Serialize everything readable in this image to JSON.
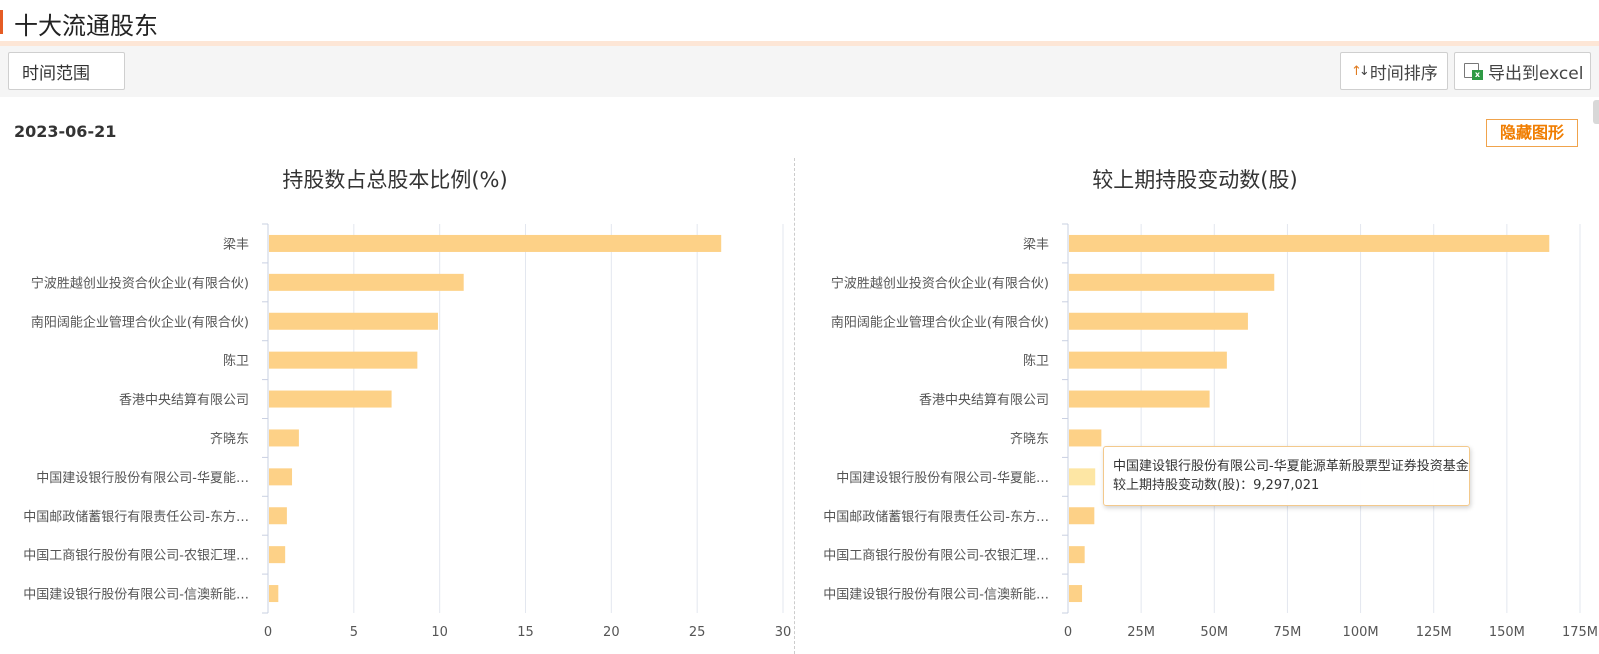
{
  "header": {
    "title": "十大流通股东"
  },
  "toolbar": {
    "time_range_label": "时间范围",
    "sort_label": "时间排序",
    "export_label": "导出到excel"
  },
  "report_date": "2023-06-21",
  "hide_chart_label": "隐藏图形",
  "colors": {
    "bar": "#fdd187",
    "bar_highlight": "#fde6a4",
    "accent": "#e55c24",
    "hide_button": "#f07d00"
  },
  "chart_data": [
    {
      "type": "bar",
      "orientation": "horizontal",
      "title": "持股数占总股本比例(%)",
      "categories": [
        "梁丰",
        "宁波胜越创业投资合伙企业(有限合伙)",
        "南阳阔能企业管理合伙企业(有限合伙)",
        "陈卫",
        "香港中央结算有限公司",
        "齐晓东",
        "中国建设银行股份有限公司-华夏能…",
        "中国邮政储蓄银行有限责任公司-东方…",
        "中国工商银行股份有限公司-农银汇理…",
        "中国建设银行股份有限公司-信澳新能…"
      ],
      "values": [
        26.4,
        11.4,
        9.9,
        8.7,
        7.2,
        1.8,
        1.4,
        1.1,
        1.0,
        0.6
      ],
      "xlim": [
        0,
        30
      ],
      "xticks": [
        "0",
        "5",
        "10",
        "15",
        "20",
        "25",
        "30"
      ],
      "xtick_values": [
        0,
        5,
        10,
        15,
        20,
        25,
        30
      ],
      "grid": true
    },
    {
      "type": "bar",
      "orientation": "horizontal",
      "title": "较上期持股变动数(股)",
      "categories": [
        "梁丰",
        "宁波胜越创业投资合伙企业(有限合伙)",
        "南阳阔能企业管理合伙企业(有限合伙)",
        "陈卫",
        "香港中央结算有限公司",
        "齐晓东",
        "中国建设银行股份有限公司-华夏能…",
        "中国邮政储蓄银行有限责任公司-东方…",
        "中国工商银行股份有限公司-农银汇理…",
        "中国建设银行股份有限公司-信澳新能…"
      ],
      "values": [
        164500000,
        70500000,
        61500000,
        54300000,
        48400000,
        11400000,
        9297021,
        9000000,
        5700000,
        4800000
      ],
      "xlim": [
        0,
        175000000
      ],
      "xticks": [
        "0",
        "25M",
        "50M",
        "75M",
        "100M",
        "125M",
        "150M",
        "175M"
      ],
      "xtick_values": [
        0,
        25000000,
        50000000,
        75000000,
        100000000,
        125000000,
        150000000,
        175000000
      ],
      "grid": true,
      "highlight_index": 6
    }
  ],
  "tooltip": {
    "name": "中国建设银行股份有限公司-华夏能源革新股票型证券投资基金",
    "label": "较上期持股变动数(股)：",
    "value": "9,297,021"
  }
}
